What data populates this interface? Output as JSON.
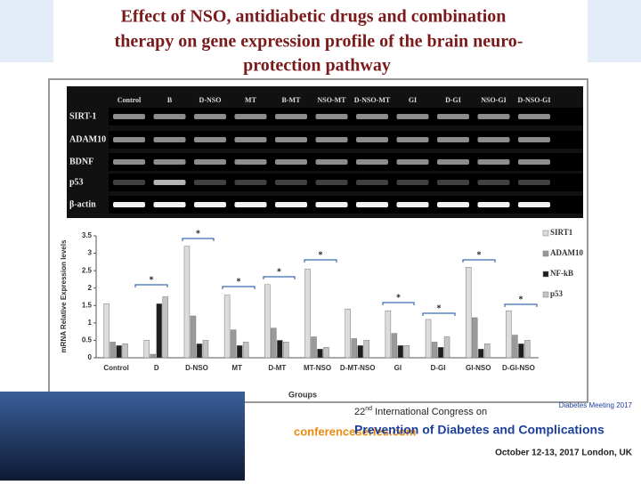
{
  "slide_title": [
    "Effect of NSO, antidiabetic drugs and combination",
    "therapy on gene expression profile of the brain neuro-",
    "protection pathway"
  ],
  "gel": {
    "lanes": [
      "Control",
      "B",
      "D-NSO",
      "MT",
      "B-MT",
      "NSO-MT",
      "D-NSO-MT",
      "GI",
      "D-GI",
      "NSO-GI",
      "D-NSO-GI"
    ],
    "rows": [
      "SIRT-1",
      "ADAM10",
      "BDNF",
      "p53",
      "β-actin"
    ]
  },
  "chart_data": {
    "type": "bar",
    "ylabel": "mRNA Relative Expression levels",
    "xlabel": "Groups",
    "categories": [
      "Control",
      "D",
      "D-NSO",
      "MT",
      "D-MT",
      "MT-NSO",
      "D-MT-NSO",
      "GI",
      "D-GI",
      "GI-NSO",
      "D-GI-NSO"
    ],
    "series": [
      {
        "name": "SIRT1",
        "color": "#dcdcdc",
        "values": [
          1.55,
          0.5,
          3.2,
          1.8,
          2.1,
          2.55,
          1.4,
          1.35,
          1.1,
          2.6,
          1.35
        ]
      },
      {
        "name": "ADAM10",
        "color": "#9a9a9a",
        "values": [
          0.45,
          0.1,
          1.2,
          0.8,
          0.85,
          0.6,
          0.55,
          0.7,
          0.45,
          1.15,
          0.65
        ]
      },
      {
        "name": "NF-kB",
        "color": "#1e1e1e",
        "values": [
          0.35,
          1.55,
          0.4,
          0.35,
          0.5,
          0.25,
          0.35,
          0.35,
          0.3,
          0.25,
          0.4
        ]
      },
      {
        "name": "p53",
        "color": "#c4c4c4",
        "values": [
          0.4,
          1.75,
          0.5,
          0.45,
          0.45,
          0.3,
          0.5,
          0.35,
          0.6,
          0.4,
          0.5
        ]
      }
    ],
    "ylim": [
      0,
      3.5
    ],
    "yticks": [
      0,
      0.5,
      1,
      1.5,
      2,
      2.5,
      3,
      3.5
    ],
    "annotations": [
      "*",
      "*",
      "*",
      "*",
      "*",
      "*",
      "*",
      "*",
      "*"
    ]
  },
  "footer": {
    "site": "conferenceseries.com",
    "congress_num": "22",
    "congress_sup": "nd",
    "congress_rest": " International Congress on",
    "congress_name": "Prevention of Diabetes and Complications",
    "date": "October 12-13, 2017 London, UK",
    "meeting": "Diabetes Meeting 2017"
  }
}
